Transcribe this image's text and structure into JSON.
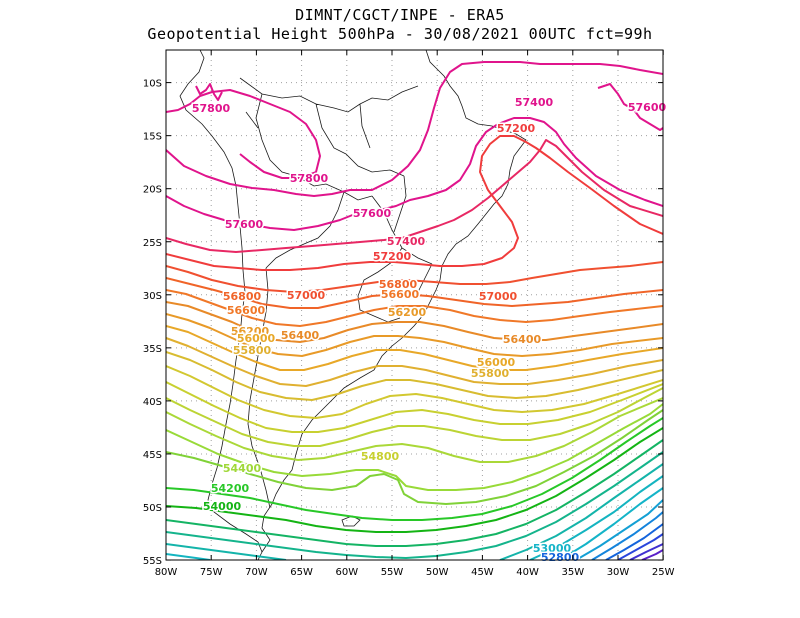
{
  "header": {
    "line1": "DIMNT/CGCT/INPE  -  ERA5",
    "line2": "Geopotential Height 500hPa -  30/08/2021 00UTC fct=99h"
  },
  "axes": {
    "lat_labels": [
      "10S",
      "15S",
      "20S",
      "25S",
      "30S",
      "35S",
      "40S",
      "45S",
      "50S",
      "55S"
    ],
    "lon_labels": [
      "80W",
      "75W",
      "70W",
      "65W",
      "60W",
      "55W",
      "50W",
      "45W",
      "40W",
      "35W",
      "30W",
      "25W"
    ]
  },
  "contour_labels": [
    {
      "text": "57800",
      "color": "#e0148c"
    },
    {
      "text": "57800",
      "color": "#e0148c"
    },
    {
      "text": "57600",
      "color": "#e0148c"
    },
    {
      "text": "57600",
      "color": "#e0148c"
    },
    {
      "text": "57400",
      "color": "#e0148c"
    },
    {
      "text": "57600",
      "color": "#e0148c"
    },
    {
      "text": "57200",
      "color": "#f03c3c"
    },
    {
      "text": "57400",
      "color": "#e82864"
    },
    {
      "text": "57200",
      "color": "#f03c3c"
    },
    {
      "text": "57000",
      "color": "#f05030"
    },
    {
      "text": "57000",
      "color": "#f05030"
    },
    {
      "text": "56800",
      "color": "#f06428"
    },
    {
      "text": "56800",
      "color": "#f06428"
    },
    {
      "text": "56600",
      "color": "#f07828"
    },
    {
      "text": "56600",
      "color": "#f07828"
    },
    {
      "text": "56400",
      "color": "#e88a28"
    },
    {
      "text": "56400",
      "color": "#e88a28"
    },
    {
      "text": "56200",
      "color": "#e89a28"
    },
    {
      "text": "56200",
      "color": "#e89a28"
    },
    {
      "text": "56000",
      "color": "#e8a828"
    },
    {
      "text": "56000",
      "color": "#e8a828"
    },
    {
      "text": "55800",
      "color": "#e0b030"
    },
    {
      "text": "55800",
      "color": "#e0b030"
    },
    {
      "text": "54800",
      "color": "#c8d030"
    },
    {
      "text": "54400",
      "color": "#a0d838"
    },
    {
      "text": "54200",
      "color": "#28c828"
    },
    {
      "text": "54000",
      "color": "#14b414"
    },
    {
      "text": "53000",
      "color": "#14b4c8"
    },
    {
      "text": "52800",
      "color": "#1464dc"
    }
  ]
}
